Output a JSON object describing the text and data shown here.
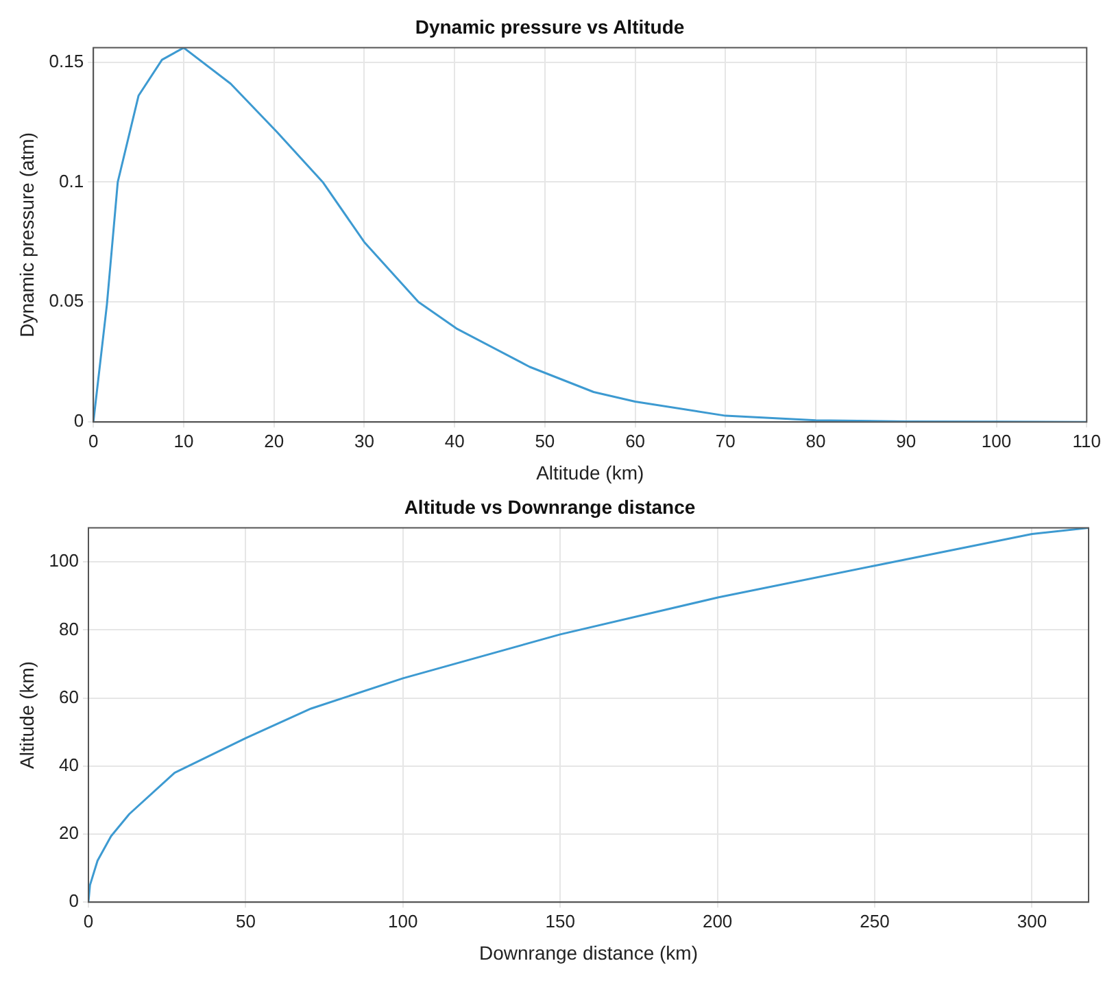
{
  "chart_data": [
    {
      "type": "line",
      "title": "Dynamic pressure vs Altitude",
      "xlabel": "Altitude (km)",
      "ylabel": "Dynamic pressure (atm)",
      "xlim": [
        0,
        110
      ],
      "ylim": [
        0,
        0.156
      ],
      "xticks": [
        0,
        10,
        20,
        30,
        40,
        50,
        60,
        70,
        80,
        90,
        100,
        110
      ],
      "yticks": [
        0,
        0.05,
        0.1,
        0.15
      ],
      "grid": true,
      "marker": "none",
      "line_style": "solid",
      "series": [
        {
          "color": "#3d9ad1",
          "x": [
            0,
            1.5,
            2.7,
            5,
            7.6,
            10,
            15.2,
            20.3,
            25.4,
            30,
            36,
            40.2,
            48.3,
            55.4,
            60,
            70,
            80,
            90,
            100,
            110
          ],
          "values": [
            0,
            0.049,
            0.1,
            0.136,
            0.151,
            0.156,
            0.141,
            0.121,
            0.1,
            0.075,
            0.05,
            0.039,
            0.023,
            0.0125,
            0.0085,
            0.0026,
            0.0007,
            0.0002,
            0.0001,
            0
          ]
        }
      ]
    },
    {
      "type": "line",
      "title": "Altitude vs Downrange distance",
      "xlabel": "Downrange distance (km)",
      "ylabel": "Altitude (km)",
      "xlim": [
        0,
        318
      ],
      "ylim": [
        0,
        110
      ],
      "xticks": [
        0,
        50,
        100,
        150,
        200,
        250,
        300
      ],
      "yticks": [
        0,
        20,
        40,
        60,
        80,
        100
      ],
      "grid": true,
      "marker": "none",
      "line_style": "solid",
      "series": [
        {
          "color": "#3d9ad1",
          "x": [
            0,
            0.5,
            2.9,
            7.2,
            13,
            27.4,
            50,
            70.8,
            100,
            150,
            200.4,
            250,
            300,
            318
          ],
          "values": [
            0,
            5,
            12.2,
            19.4,
            25.9,
            38,
            48.2,
            56.9,
            65.8,
            78.7,
            89.6,
            98.9,
            108.2,
            110
          ]
        }
      ]
    }
  ]
}
